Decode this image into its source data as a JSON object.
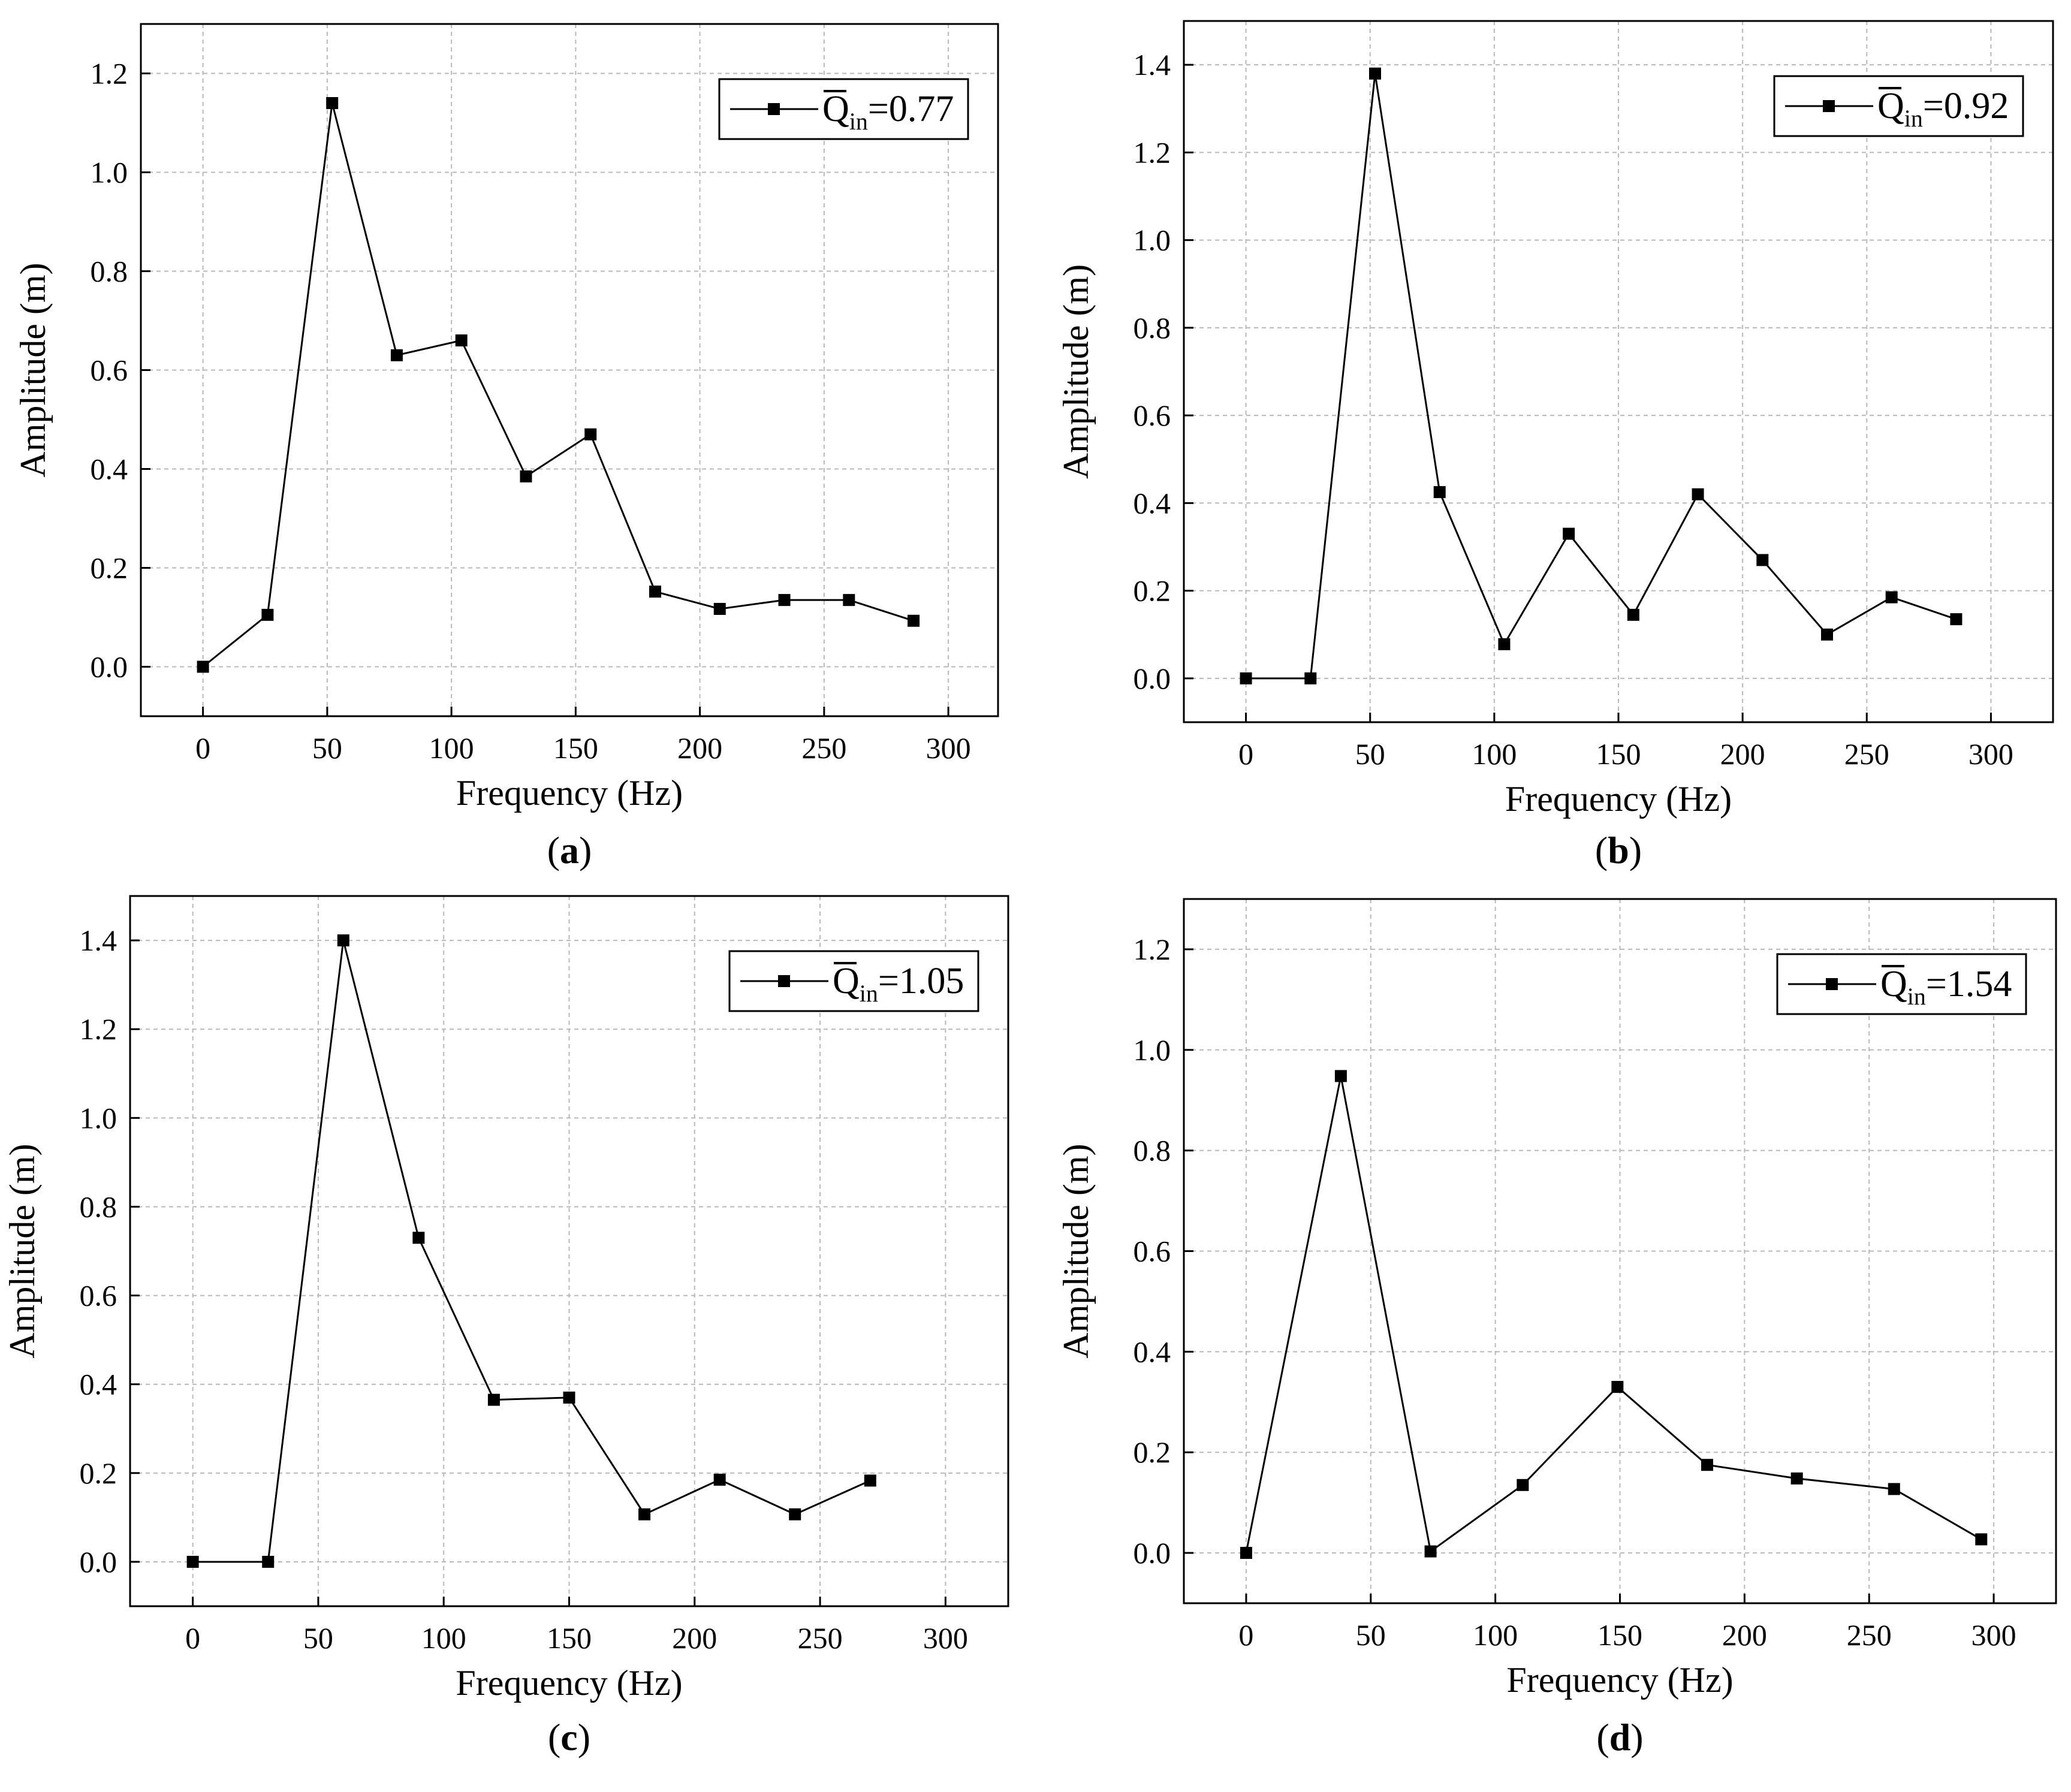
{
  "chart_data": [
    {
      "type": "line",
      "panel_label": "a",
      "xlabel": "Frequency (Hz)",
      "ylabel": "Amplitude (m)",
      "xlim": [
        -25,
        320
      ],
      "ylim": [
        -0.1,
        1.3
      ],
      "xticks": [
        0,
        50,
        100,
        150,
        200,
        250,
        300
      ],
      "yticks": [
        0.0,
        0.2,
        0.4,
        0.6,
        0.8,
        1.0,
        1.2
      ],
      "grid": true,
      "legend": {
        "position": "top-right",
        "symbol": "Q",
        "subscript": "in",
        "value_text": "=0.77"
      },
      "series": [
        {
          "name": "Q_in=0.77",
          "marker": "square",
          "x": [
            0,
            26,
            52,
            78,
            104,
            130,
            156,
            182,
            208,
            234,
            260,
            286
          ],
          "y": [
            0.0,
            0.105,
            1.14,
            0.63,
            0.66,
            0.385,
            0.47,
            0.152,
            0.117,
            0.135,
            0.135,
            0.093
          ]
        }
      ]
    },
    {
      "type": "line",
      "panel_label": "b",
      "xlabel": "Frequency (Hz)",
      "ylabel": "Amplitude (m)",
      "xlim": [
        -25,
        325
      ],
      "ylim": [
        -0.1,
        1.5
      ],
      "xticks": [
        0,
        50,
        100,
        150,
        200,
        250,
        300
      ],
      "yticks": [
        0.0,
        0.2,
        0.4,
        0.6,
        0.8,
        1.0,
        1.2,
        1.4
      ],
      "grid": true,
      "legend": {
        "position": "top-right",
        "symbol": "Q",
        "subscript": "in",
        "value_text": "=0.92"
      },
      "series": [
        {
          "name": "Q_in=0.92",
          "marker": "square",
          "x": [
            0,
            26,
            52,
            78,
            104,
            130,
            156,
            182,
            208,
            234,
            260,
            286
          ],
          "y": [
            0.0,
            0.0,
            1.38,
            0.425,
            0.078,
            0.33,
            0.145,
            0.42,
            0.27,
            0.1,
            0.185,
            0.135
          ]
        }
      ]
    },
    {
      "type": "line",
      "panel_label": "c",
      "xlabel": "Frequency (Hz)",
      "ylabel": "Amplitude (m)",
      "xlim": [
        -25,
        325
      ],
      "ylim": [
        -0.1,
        1.5
      ],
      "xticks": [
        0,
        50,
        100,
        150,
        200,
        250,
        300
      ],
      "yticks": [
        0.0,
        0.2,
        0.4,
        0.6,
        0.8,
        1.0,
        1.2,
        1.4
      ],
      "grid": true,
      "legend": {
        "position": "top-right",
        "symbol": "Q",
        "subscript": "in",
        "value_text": "=1.05"
      },
      "series": [
        {
          "name": "Q_in=1.05",
          "marker": "square",
          "x": [
            0,
            30,
            60,
            90,
            120,
            150,
            180,
            210,
            240,
            270
          ],
          "y": [
            0.0,
            0.0,
            1.4,
            0.73,
            0.365,
            0.37,
            0.107,
            0.185,
            0.107,
            0.183
          ]
        }
      ]
    },
    {
      "type": "line",
      "panel_label": "d",
      "xlabel": "Frequency (Hz)",
      "ylabel": "Amplitude (m)",
      "xlim": [
        -25,
        325
      ],
      "ylim": [
        -0.1,
        1.3
      ],
      "xticks": [
        0,
        50,
        100,
        150,
        200,
        250,
        300
      ],
      "yticks": [
        0.0,
        0.2,
        0.4,
        0.6,
        0.8,
        1.0,
        1.2
      ],
      "grid": true,
      "legend": {
        "position": "top-right",
        "symbol": "Q",
        "subscript": "in",
        "value_text": "=1.54"
      },
      "series": [
        {
          "name": "Q_in=1.54",
          "marker": "square",
          "x": [
            0,
            38,
            74,
            111,
            149,
            185,
            221,
            260,
            295
          ],
          "y": [
            0.0,
            0.948,
            0.003,
            0.135,
            0.33,
            0.175,
            0.148,
            0.127,
            0.027
          ]
        }
      ]
    }
  ]
}
